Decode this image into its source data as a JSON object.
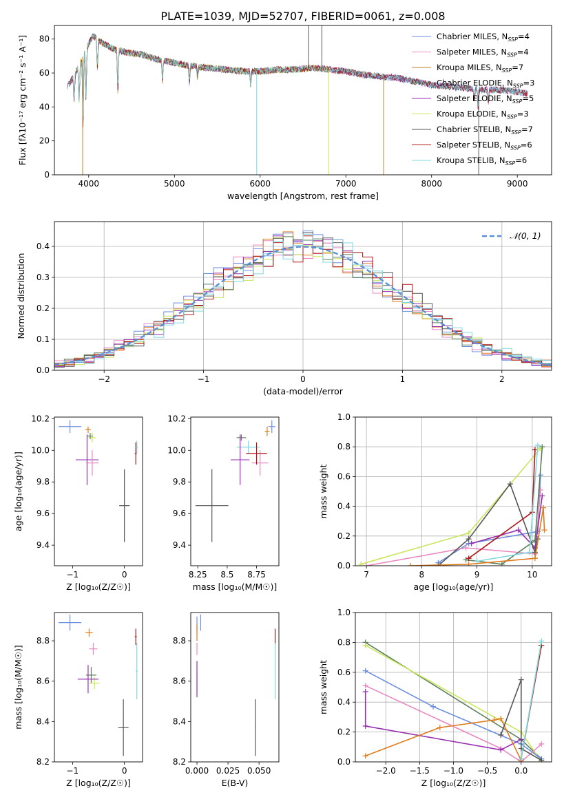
{
  "figure": {
    "title": "PLATE=1039, MJD=52707, FIBERID=0061, z=0.008"
  },
  "colors": {
    "chabrier_miles": "#6a8ee0",
    "salpeter_miles": "#e889c0",
    "kroupa_miles": "#b5821c",
    "chabrier_elodie": "#5a7f5a",
    "salpeter_elodie": "#9630b0",
    "kroupa_elodie": "#c8e65a",
    "chabrier_stelib": "#555555",
    "salpeter_stelib": "#b01414",
    "kroupa_stelib": "#7dd8e0",
    "orange": "#e07b1c",
    "normal_curve": "#5b8fd6"
  },
  "chart_data": [
    {
      "id": "spectrum",
      "type": "line",
      "xlabel": "wavelength [Angstrom, rest frame]",
      "ylabel": "Flux [f_λ 10^-17 erg cm^-2 s^-1 A^-1]",
      "xlim": [
        3600,
        9400
      ],
      "ylim": [
        0,
        88
      ],
      "xticks": [
        4000,
        5000,
        6000,
        7000,
        8000,
        9000
      ],
      "yticks": [
        0,
        20,
        40,
        60,
        80
      ],
      "grid": false,
      "legend_position": "top-right",
      "legend": [
        {
          "label": "Chabrier MILES, N",
          "sub": "SSP",
          "eq": "=4",
          "color": "#6a8ee0"
        },
        {
          "label": "Salpeter MILES, N",
          "sub": "SSP",
          "eq": "=4",
          "color": "#e889c0"
        },
        {
          "label": "Kroupa MILES, N",
          "sub": "SSP",
          "eq": "=7",
          "color": "#b5821c"
        },
        {
          "label": "Chabrier ELODIE, N",
          "sub": "SSP",
          "eq": "=3",
          "color": "#5a7f5a"
        },
        {
          "label": "Salpeter ELODIE, N",
          "sub": "SSP",
          "eq": "=5",
          "color": "#9630b0"
        },
        {
          "label": "Kroupa ELODIE, N",
          "sub": "SSP",
          "eq": "=3",
          "color": "#c8e65a"
        },
        {
          "label": "Chabrier STELIB, N",
          "sub": "SSP",
          "eq": "=7",
          "color": "#555555"
        },
        {
          "label": "Salpeter STELIB, N",
          "sub": "SSP",
          "eq": "=6",
          "color": "#b01414"
        },
        {
          "label": "Kroupa STELIB, N",
          "sub": "SSP",
          "eq": "=6",
          "color": "#7dd8e0"
        }
      ],
      "continuum": {
        "x": [
          3750,
          3850,
          3950,
          4050,
          4150,
          4300,
          4450,
          4600,
          4800,
          5000,
          5200,
          5400,
          5600,
          5800,
          6000,
          6200,
          6400,
          6600,
          6800,
          7000,
          7200,
          7400,
          7600,
          7800,
          8000,
          8200,
          8400,
          8600,
          8800,
          9000,
          9100
        ],
        "y": [
          52,
          60,
          72,
          82,
          78,
          74,
          72,
          71,
          68,
          66,
          64,
          63,
          62,
          61,
          61,
          62,
          62,
          63,
          62,
          61,
          59,
          58,
          57,
          55,
          53,
          52,
          51,
          50,
          50,
          49,
          48
        ]
      },
      "absorption_lines": [
        {
          "x": 3830,
          "depth": 14
        },
        {
          "x": 3889,
          "depth": 22
        },
        {
          "x": 3934,
          "depth": 40
        },
        {
          "x": 3968,
          "depth": 30
        },
        {
          "x": 4102,
          "depth": 18
        },
        {
          "x": 4340,
          "depth": 24
        },
        {
          "x": 4861,
          "depth": 12
        },
        {
          "x": 5175,
          "depth": 10
        },
        {
          "x": 5270,
          "depth": 6
        },
        {
          "x": 5890,
          "depth": 8
        },
        {
          "x": 8498,
          "depth": 6
        },
        {
          "x": 8542,
          "depth": 10
        },
        {
          "x": 8662,
          "depth": 8
        }
      ],
      "spikes": [
        {
          "x": 5960,
          "to": 0,
          "color": "#7dd8e0"
        },
        {
          "x": 3930,
          "to": 0,
          "color": "#b5821c"
        },
        {
          "x": 6800,
          "to": 0,
          "color": "#c8e65a"
        },
        {
          "x": 7440,
          "to": 0,
          "color": "#e07b1c"
        },
        {
          "x": 8550,
          "to": 0,
          "color": "#555555"
        },
        {
          "x": 6563,
          "to": 88,
          "color": "#555555"
        },
        {
          "x": 6720,
          "to": 88,
          "color": "#555555"
        }
      ]
    },
    {
      "id": "residuals",
      "type": "histogram",
      "xlabel": "(data-model)/error",
      "ylabel": "Normed distribution",
      "xlim": [
        -2.5,
        2.5
      ],
      "ylim": [
        0,
        0.48
      ],
      "xticks": [
        -2,
        -1,
        0,
        1,
        2
      ],
      "yticks": [
        0.0,
        0.1,
        0.2,
        0.3,
        0.4
      ],
      "grid": true,
      "legend_position": "top-right",
      "legend": [
        {
          "label": "𝒩(0, 1)",
          "style": "dashed",
          "color": "#5b8fd6"
        }
      ],
      "bin_width": 0.1
    },
    {
      "id": "age_vs_Z",
      "type": "scatter",
      "xlabel": "Z [log10(Z/Z☉)]",
      "ylabel": "age [log10(age/yr)]",
      "xlim": [
        -1.35,
        0.35
      ],
      "ylim": [
        9.27,
        10.21
      ],
      "xticks": [
        -1,
        0
      ],
      "yticks": [
        9.4,
        9.6,
        9.8,
        10.0,
        10.2
      ],
      "points": [
        {
          "x": -1.05,
          "y": 10.15,
          "xerr": 0.22,
          "yerr": 0.04,
          "color": "#6a8ee0"
        },
        {
          "x": -0.7,
          "y": 10.13,
          "xerr": 0.05,
          "yerr": 0.02,
          "color": "#e07b1c"
        },
        {
          "x": -0.62,
          "y": 10.08,
          "xerr": 0.07,
          "yerr": 0.03,
          "color": "#c8e65a"
        },
        {
          "x": -0.66,
          "y": 10.09,
          "xerr": 0.05,
          "yerr": 0.02,
          "color": "#5a7f5a"
        },
        {
          "x": -0.72,
          "y": 9.94,
          "xerr": 0.22,
          "yerr": 0.16,
          "color": "#9630b0"
        },
        {
          "x": -0.62,
          "y": 9.92,
          "xerr": 0.12,
          "yerr": 0.08,
          "color": "#e889c0"
        },
        {
          "x": 0.0,
          "y": 9.65,
          "xerr": 0.1,
          "yerr": 0.23,
          "color": "#555555"
        },
        {
          "x": 0.22,
          "y": 9.98,
          "xerr": 0.02,
          "yerr": 0.07,
          "color": "#b01414"
        },
        {
          "x": 0.24,
          "y": 10.02,
          "xerr": 0.02,
          "yerr": 0.04,
          "color": "#7dd8e0"
        }
      ]
    },
    {
      "id": "age_vs_mass",
      "type": "scatter",
      "xlabel": "mass [log10(M/M☉)]",
      "ylabel": "",
      "xlim": [
        8.19,
        8.94
      ],
      "ylim": [
        9.27,
        10.21
      ],
      "xticks": [
        8.25,
        8.5,
        8.75
      ],
      "yticks": [
        9.4,
        9.6,
        9.8,
        10.0,
        10.2
      ],
      "points": [
        {
          "x": 8.88,
          "y": 10.15,
          "xerr": 0.03,
          "yerr": 0.04,
          "color": "#6a8ee0"
        },
        {
          "x": 8.84,
          "y": 10.12,
          "xerr": 0.02,
          "yerr": 0.03,
          "color": "#e07b1c"
        },
        {
          "x": 8.62,
          "y": 10.08,
          "xerr": 0.04,
          "yerr": 0.02,
          "color": "#5a7f5a"
        },
        {
          "x": 8.68,
          "y": 10.02,
          "xerr": 0.1,
          "yerr": 0.04,
          "color": "#7dd8e0"
        },
        {
          "x": 8.61,
          "y": 9.94,
          "xerr": 0.08,
          "yerr": 0.16,
          "color": "#9630b0"
        },
        {
          "x": 8.78,
          "y": 9.92,
          "xerr": 0.07,
          "yerr": 0.08,
          "color": "#e889c0"
        },
        {
          "x": 8.75,
          "y": 9.98,
          "xerr": 0.09,
          "yerr": 0.07,
          "color": "#b01414"
        },
        {
          "x": 8.37,
          "y": 9.65,
          "xerr": 0.14,
          "yerr": 0.23,
          "color": "#555555"
        }
      ]
    },
    {
      "id": "weight_vs_age",
      "type": "line",
      "xlabel": "age [log10(age/yr)]",
      "ylabel": "mass weight",
      "xlim": [
        6.8,
        10.35
      ],
      "ylim": [
        0,
        1.0
      ],
      "xticks": [
        7,
        8,
        9,
        10
      ],
      "yticks": [
        0.0,
        0.2,
        0.4,
        0.6,
        0.8,
        1.0
      ],
      "grid": true,
      "series": [
        {
          "color": "#c8e65a",
          "x": [
            6.9,
            8.85,
            10.15
          ],
          "y": [
            0.01,
            0.22,
            0.79
          ]
        },
        {
          "color": "#6a8ee0",
          "x": [
            8.3,
            8.85,
            10.1,
            10.15
          ],
          "y": [
            0.02,
            0.15,
            0.23,
            0.61
          ]
        },
        {
          "color": "#e889c0",
          "x": [
            7.0,
            8.8,
            10.05,
            10.15
          ],
          "y": [
            0.0,
            0.12,
            0.08,
            0.51
          ]
        },
        {
          "color": "#9630b0",
          "x": [
            8.9,
            9.75,
            10.05,
            10.18
          ],
          "y": [
            0.15,
            0.24,
            0.12,
            0.47
          ]
        },
        {
          "color": "#555555",
          "x": [
            8.3,
            8.85,
            9.6,
            10.05,
            10.1
          ],
          "y": [
            0.0,
            0.18,
            0.55,
            0.09,
            0.18
          ]
        },
        {
          "color": "#5a7f5a",
          "x": [
            8.8,
            9.45,
            10.05,
            10.18
          ],
          "y": [
            0.04,
            0.01,
            0.17,
            0.8
          ]
        },
        {
          "color": "#b01414",
          "x": [
            8.85,
            10.0,
            10.05
          ],
          "y": [
            0.05,
            0.36,
            0.78
          ]
        },
        {
          "color": "#7dd8e0",
          "x": [
            9.0,
            9.95,
            10.1
          ],
          "y": [
            0.03,
            0.09,
            0.81
          ]
        },
        {
          "color": "#e07b1c",
          "x": [
            7.8,
            8.85,
            10.05,
            10.2,
            10.22
          ],
          "y": [
            0.0,
            0.01,
            0.05,
            0.39,
            0.24
          ]
        }
      ]
    },
    {
      "id": "mass_vs_Z",
      "type": "scatter",
      "xlabel": "Z [log10(Z/Z☉)]",
      "ylabel": "mass [log10(M/M☉)]",
      "xlim": [
        -1.35,
        0.35
      ],
      "ylim": [
        8.2,
        8.94
      ],
      "xticks": [
        -1,
        0
      ],
      "yticks": [
        8.2,
        8.4,
        8.6,
        8.8
      ],
      "points": [
        {
          "x": -1.05,
          "y": 8.89,
          "xerr": 0.22,
          "yerr": 0.04,
          "color": "#6a8ee0"
        },
        {
          "x": -0.68,
          "y": 8.84,
          "xerr": 0.07,
          "yerr": 0.02,
          "color": "#e07b1c"
        },
        {
          "x": -0.6,
          "y": 8.76,
          "xerr": 0.08,
          "yerr": 0.03,
          "color": "#e889c0"
        },
        {
          "x": -0.64,
          "y": 8.63,
          "xerr": 0.1,
          "yerr": 0.04,
          "color": "#5a7f5a"
        },
        {
          "x": -0.58,
          "y": 8.59,
          "xerr": 0.1,
          "yerr": 0.03,
          "color": "#c8e65a"
        },
        {
          "x": -0.7,
          "y": 8.61,
          "xerr": 0.2,
          "yerr": 0.07,
          "color": "#9630b0"
        },
        {
          "x": -0.02,
          "y": 8.37,
          "xerr": 0.1,
          "yerr": 0.14,
          "color": "#555555"
        },
        {
          "x": 0.22,
          "y": 8.82,
          "xerr": 0.02,
          "yerr": 0.04,
          "color": "#b01414"
        },
        {
          "x": 0.24,
          "y": 8.65,
          "xerr": 0.02,
          "yerr": 0.14,
          "color": "#7dd8e0"
        }
      ]
    },
    {
      "id": "mass_vs_ebv",
      "type": "scatter",
      "xlabel": "E(B-V)",
      "ylabel": "",
      "xlim": [
        -0.005,
        0.066
      ],
      "ylim": [
        8.2,
        8.94
      ],
      "xticks": [
        0.0,
        0.025,
        0.05
      ],
      "xtick_labels": [
        "0.000",
        "0.025",
        "0.050"
      ],
      "yticks": [
        8.2,
        8.4,
        8.6,
        8.8
      ],
      "points": [
        {
          "x": 0.0,
          "y": 8.88,
          "xerr": 0.0003,
          "yerr": 0.04,
          "color": "#6a8ee0"
        },
        {
          "x": 0.0,
          "y": 8.84,
          "xerr": 0.0003,
          "yerr": 0.04,
          "color": "#e07b1c"
        },
        {
          "x": 0.0,
          "y": 8.76,
          "xerr": 0.0003,
          "yerr": 0.03,
          "color": "#e889c0"
        },
        {
          "x": 0.0,
          "y": 8.6,
          "xerr": 0.0003,
          "yerr": 0.05,
          "color": "#c8e65a"
        },
        {
          "x": 0.0,
          "y": 8.61,
          "xerr": 0.0003,
          "yerr": 0.09,
          "color": "#9630b0"
        },
        {
          "x": 0.003,
          "y": 8.89,
          "xerr": 0.0003,
          "yerr": 0.04,
          "color": "#6a8ee0"
        },
        {
          "x": 0.047,
          "y": 8.37,
          "xerr": 0.0003,
          "yerr": 0.14,
          "color": "#555555"
        },
        {
          "x": 0.063,
          "y": 8.82,
          "xerr": 0.0003,
          "yerr": 0.04,
          "color": "#b01414"
        },
        {
          "x": 0.063,
          "y": 8.65,
          "xerr": 0.0003,
          "yerr": 0.14,
          "color": "#7dd8e0"
        }
      ]
    },
    {
      "id": "weight_vs_Z",
      "type": "line",
      "xlabel": "Z [log10(Z/Z☉)]",
      "ylabel": "mass weight",
      "xlim": [
        -2.45,
        0.45
      ],
      "ylim": [
        0,
        1.0
      ],
      "xticks": [
        -2.0,
        -1.5,
        -1.0,
        -0.5,
        0.0
      ],
      "xtick_labels": [
        "−2.0",
        "−1.5",
        "−1.0",
        "−0.5",
        "0.0"
      ],
      "yticks": [
        0.0,
        0.2,
        0.4,
        0.6,
        0.8,
        1.0
      ],
      "grid": true,
      "series": [
        {
          "color": "#5a7f5a",
          "x": [
            -2.3,
            0.0,
            0.3
          ],
          "y": [
            0.8,
            0.15,
            0.02
          ]
        },
        {
          "color": "#c8e65a",
          "x": [
            -2.3,
            0.0,
            0.3
          ],
          "y": [
            0.78,
            0.2,
            0.0
          ]
        },
        {
          "color": "#6a8ee0",
          "x": [
            -2.3,
            -1.3,
            0.0,
            0.3
          ],
          "y": [
            0.61,
            0.37,
            0.12,
            0.02
          ]
        },
        {
          "color": "#e889c0",
          "x": [
            -2.3,
            -0.3,
            0.0,
            0.3
          ],
          "y": [
            0.51,
            0.09,
            0.0,
            0.12
          ]
        },
        {
          "color": "#9630b0",
          "x": [
            -2.3,
            -2.3,
            -0.3,
            0.0
          ],
          "y": [
            0.47,
            0.24,
            0.08,
            0.15
          ]
        },
        {
          "color": "#e07b1c",
          "x": [
            -2.3,
            -1.2,
            -0.4,
            -0.3,
            0.0
          ],
          "y": [
            0.04,
            0.23,
            0.28,
            0.29,
            0.01
          ]
        },
        {
          "color": "#555555",
          "x": [
            -0.3,
            0.0,
            0.0,
            0.3
          ],
          "y": [
            0.18,
            0.55,
            0.09,
            0.01
          ]
        },
        {
          "color": "#b01414",
          "x": [
            0.0,
            0.3
          ],
          "y": [
            0.02,
            0.78
          ]
        },
        {
          "color": "#7dd8e0",
          "x": [
            0.0,
            0.3
          ],
          "y": [
            0.02,
            0.81
          ]
        }
      ]
    }
  ]
}
